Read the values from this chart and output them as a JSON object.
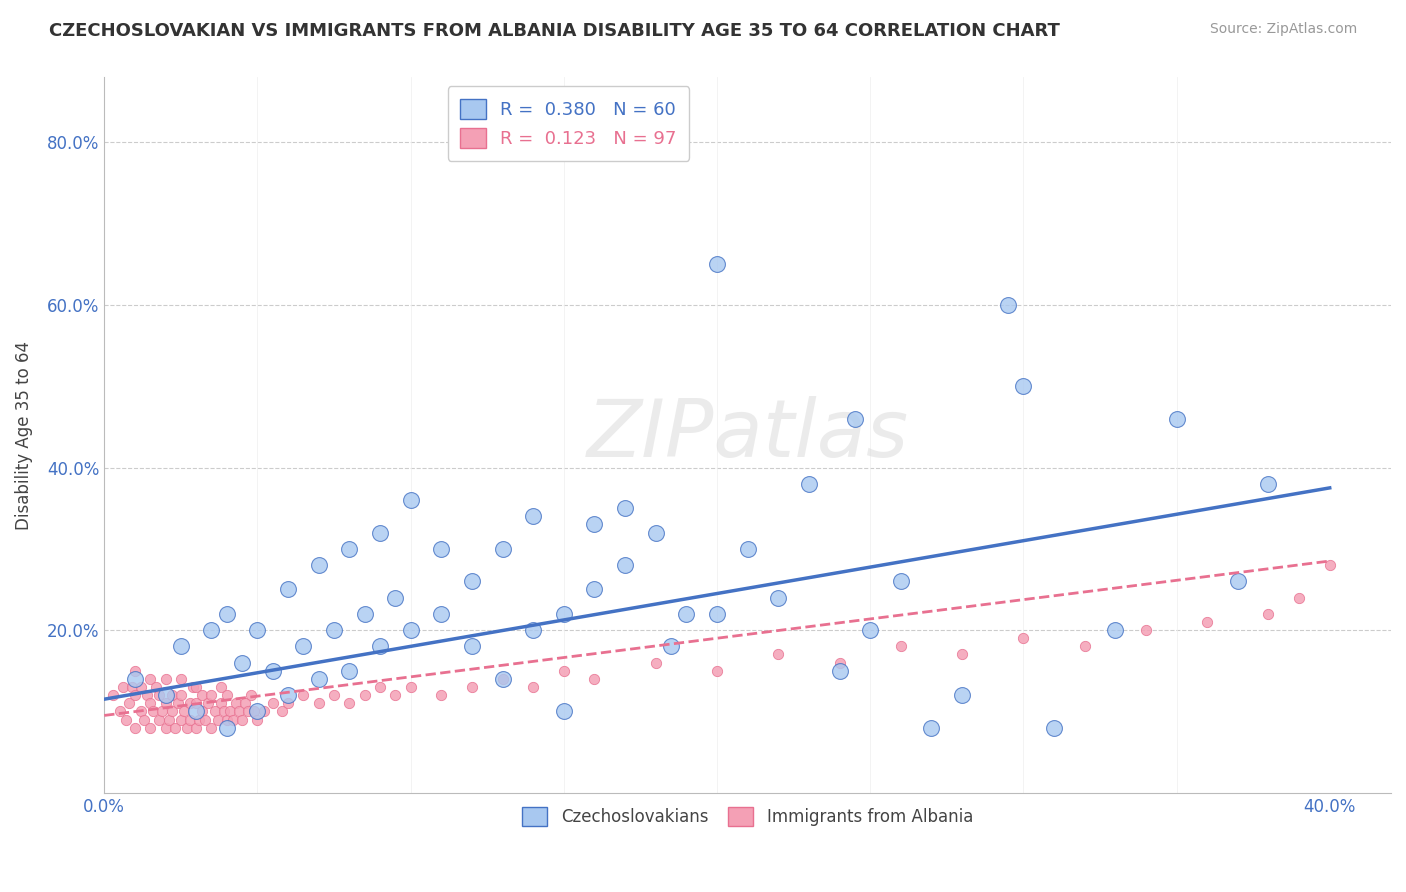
{
  "title": "CZECHOSLOVAKIAN VS IMMIGRANTS FROM ALBANIA DISABILITY AGE 35 TO 64 CORRELATION CHART",
  "source": "Source: ZipAtlas.com",
  "ylabel": "Disability Age 35 to 64",
  "xlim": [
    0.0,
    0.42
  ],
  "ylim": [
    0.0,
    0.88
  ],
  "xticks": [
    0.0,
    0.05,
    0.1,
    0.15,
    0.2,
    0.25,
    0.3,
    0.35,
    0.4
  ],
  "xticklabels": [
    "0.0%",
    "",
    "",
    "",
    "",
    "",
    "",
    "",
    "40.0%"
  ],
  "yticks": [
    0.0,
    0.2,
    0.4,
    0.6,
    0.8
  ],
  "yticklabels": [
    "",
    "20.0%",
    "40.0%",
    "60.0%",
    "80.0%"
  ],
  "color_blue": "#A8C8F0",
  "color_pink": "#F4A0B5",
  "color_blue_dark": "#4472C4",
  "color_pink_dark": "#E87090",
  "watermark_color": "#D8D8D8",
  "blue_scatter_x": [
    0.01,
    0.02,
    0.025,
    0.03,
    0.035,
    0.04,
    0.04,
    0.045,
    0.05,
    0.05,
    0.055,
    0.06,
    0.06,
    0.065,
    0.07,
    0.07,
    0.075,
    0.08,
    0.08,
    0.085,
    0.09,
    0.09,
    0.095,
    0.1,
    0.1,
    0.11,
    0.11,
    0.12,
    0.12,
    0.13,
    0.13,
    0.14,
    0.14,
    0.15,
    0.15,
    0.16,
    0.16,
    0.17,
    0.17,
    0.18,
    0.185,
    0.19,
    0.2,
    0.2,
    0.21,
    0.22,
    0.23,
    0.24,
    0.25,
    0.26,
    0.27,
    0.28,
    0.3,
    0.31,
    0.33,
    0.35,
    0.37,
    0.38,
    0.295,
    0.245
  ],
  "blue_scatter_y": [
    0.14,
    0.12,
    0.18,
    0.1,
    0.2,
    0.08,
    0.22,
    0.16,
    0.1,
    0.2,
    0.15,
    0.12,
    0.25,
    0.18,
    0.14,
    0.28,
    0.2,
    0.15,
    0.3,
    0.22,
    0.18,
    0.32,
    0.24,
    0.2,
    0.36,
    0.22,
    0.3,
    0.18,
    0.26,
    0.14,
    0.3,
    0.2,
    0.34,
    0.22,
    0.1,
    0.25,
    0.33,
    0.28,
    0.35,
    0.32,
    0.18,
    0.22,
    0.65,
    0.22,
    0.3,
    0.24,
    0.38,
    0.15,
    0.2,
    0.26,
    0.08,
    0.12,
    0.5,
    0.08,
    0.2,
    0.46,
    0.26,
    0.38,
    0.6,
    0.46
  ],
  "pink_scatter_x": [
    0.003,
    0.005,
    0.006,
    0.007,
    0.008,
    0.009,
    0.01,
    0.01,
    0.01,
    0.012,
    0.012,
    0.013,
    0.014,
    0.015,
    0.015,
    0.015,
    0.016,
    0.017,
    0.018,
    0.018,
    0.019,
    0.02,
    0.02,
    0.02,
    0.021,
    0.022,
    0.022,
    0.023,
    0.024,
    0.025,
    0.025,
    0.025,
    0.026,
    0.027,
    0.028,
    0.028,
    0.029,
    0.03,
    0.03,
    0.03,
    0.031,
    0.032,
    0.032,
    0.033,
    0.034,
    0.035,
    0.035,
    0.036,
    0.037,
    0.038,
    0.038,
    0.039,
    0.04,
    0.04,
    0.041,
    0.042,
    0.043,
    0.044,
    0.045,
    0.046,
    0.047,
    0.048,
    0.049,
    0.05,
    0.052,
    0.055,
    0.058,
    0.06,
    0.065,
    0.07,
    0.075,
    0.08,
    0.085,
    0.09,
    0.095,
    0.1,
    0.11,
    0.12,
    0.13,
    0.14,
    0.15,
    0.16,
    0.18,
    0.2,
    0.22,
    0.24,
    0.26,
    0.28,
    0.3,
    0.32,
    0.34,
    0.36,
    0.38,
    0.39,
    0.4
  ],
  "pink_scatter_y": [
    0.12,
    0.1,
    0.13,
    0.09,
    0.11,
    0.13,
    0.08,
    0.12,
    0.15,
    0.1,
    0.13,
    0.09,
    0.12,
    0.08,
    0.11,
    0.14,
    0.1,
    0.13,
    0.09,
    0.12,
    0.1,
    0.08,
    0.11,
    0.14,
    0.09,
    0.12,
    0.1,
    0.08,
    0.11,
    0.09,
    0.12,
    0.14,
    0.1,
    0.08,
    0.11,
    0.09,
    0.13,
    0.08,
    0.11,
    0.13,
    0.09,
    0.1,
    0.12,
    0.09,
    0.11,
    0.08,
    0.12,
    0.1,
    0.09,
    0.11,
    0.13,
    0.1,
    0.09,
    0.12,
    0.1,
    0.09,
    0.11,
    0.1,
    0.09,
    0.11,
    0.1,
    0.12,
    0.1,
    0.09,
    0.1,
    0.11,
    0.1,
    0.11,
    0.12,
    0.11,
    0.12,
    0.11,
    0.12,
    0.13,
    0.12,
    0.13,
    0.12,
    0.13,
    0.14,
    0.13,
    0.15,
    0.14,
    0.16,
    0.15,
    0.17,
    0.16,
    0.18,
    0.17,
    0.19,
    0.18,
    0.2,
    0.21,
    0.22,
    0.24,
    0.28
  ],
  "blue_trend_x": [
    0.0,
    0.4
  ],
  "blue_trend_y": [
    0.115,
    0.375
  ],
  "pink_trend_x": [
    0.0,
    0.4
  ],
  "pink_trend_y": [
    0.095,
    0.285
  ]
}
